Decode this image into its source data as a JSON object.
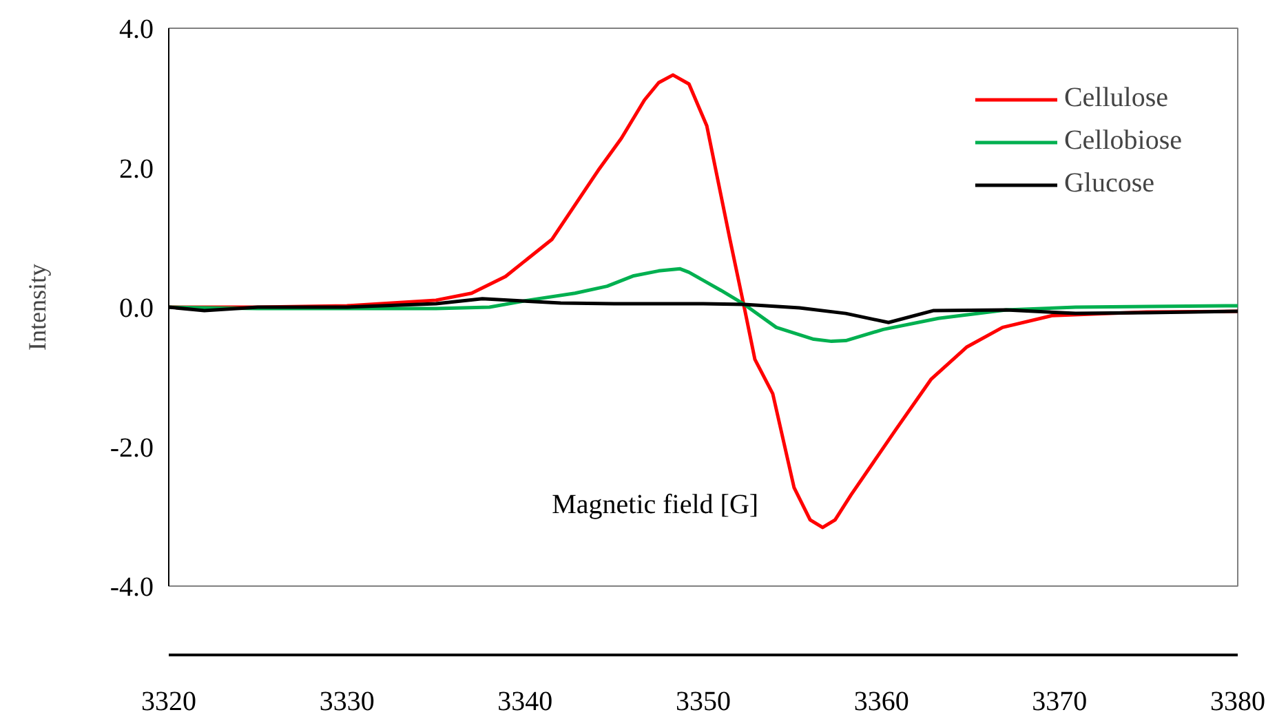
{
  "chart_data": {
    "type": "line",
    "xlabel": "Magnetic field [G]",
    "ylabel": "Intensity",
    "xlim": [
      3320,
      3380
    ],
    "xticks": [
      3320,
      3330,
      3340,
      3350,
      3360,
      3370,
      3380
    ],
    "ylim": [
      -4,
      4
    ],
    "yticks": [
      {
        "value": -4,
        "label": "-4.0"
      },
      {
        "value": -2,
        "label": "-2.0"
      },
      {
        "value": 0,
        "label": "0.0"
      },
      {
        "value": 2,
        "label": "2.0"
      },
      {
        "value": 4,
        "label": "4.0"
      }
    ],
    "grid": false,
    "legend": "top right",
    "marker": "none",
    "line_style": "solid",
    "series": [
      {
        "name": "Cellulose",
        "color": "#ff0000",
        "x": [
          3320,
          3325,
          3330,
          3335,
          3337,
          3338.9,
          3341.5,
          3344.1,
          3345.4,
          3346.7,
          3347.5,
          3348.3,
          3349.2,
          3350.2,
          3351.5,
          3352.3,
          3352.9,
          3353.9,
          3355.1,
          3356,
          3356.7,
          3357.4,
          3358.3,
          3360.8,
          3362.8,
          3364.8,
          3366.8,
          3369.6,
          3374.9,
          3380
        ],
        "values": [
          0.0,
          0.0,
          0.02,
          0.1,
          0.2,
          0.44,
          0.97,
          1.96,
          2.42,
          2.97,
          3.22,
          3.33,
          3.2,
          2.6,
          0.97,
          0.0,
          -0.75,
          -1.24,
          -2.59,
          -3.05,
          -3.16,
          -3.05,
          -2.69,
          -1.76,
          -1.03,
          -0.57,
          -0.29,
          -0.12,
          -0.07,
          -0.06
        ]
      },
      {
        "name": "Cellobiose",
        "color": "#00b050",
        "x": [
          3320,
          3325,
          3330,
          3335,
          3338,
          3340.2,
          3342.8,
          3344.6,
          3346.1,
          3347.5,
          3348.7,
          3349.2,
          3351,
          3352.3,
          3354.1,
          3356.2,
          3357.2,
          3358,
          3360.1,
          3363.2,
          3367,
          3370.9,
          3375,
          3380
        ],
        "values": [
          0.0,
          -0.02,
          -0.02,
          -0.02,
          0.0,
          0.1,
          0.2,
          0.3,
          0.45,
          0.52,
          0.55,
          0.5,
          0.24,
          0.04,
          -0.29,
          -0.46,
          -0.49,
          -0.48,
          -0.32,
          -0.16,
          -0.04,
          0.0,
          0.01,
          0.02
        ]
      },
      {
        "name": "Glucose",
        "color": "#000000",
        "x": [
          3320,
          3322,
          3325,
          3330,
          3335,
          3337.6,
          3342,
          3345,
          3350,
          3352.3,
          3355.4,
          3358,
          3360.4,
          3362.9,
          3367,
          3370.9,
          3375,
          3380
        ],
        "values": [
          0.0,
          -0.05,
          0.0,
          0.0,
          0.05,
          0.12,
          0.06,
          0.05,
          0.05,
          0.04,
          -0.01,
          -0.09,
          -0.22,
          -0.05,
          -0.04,
          -0.09,
          -0.08,
          -0.06
        ]
      }
    ]
  }
}
